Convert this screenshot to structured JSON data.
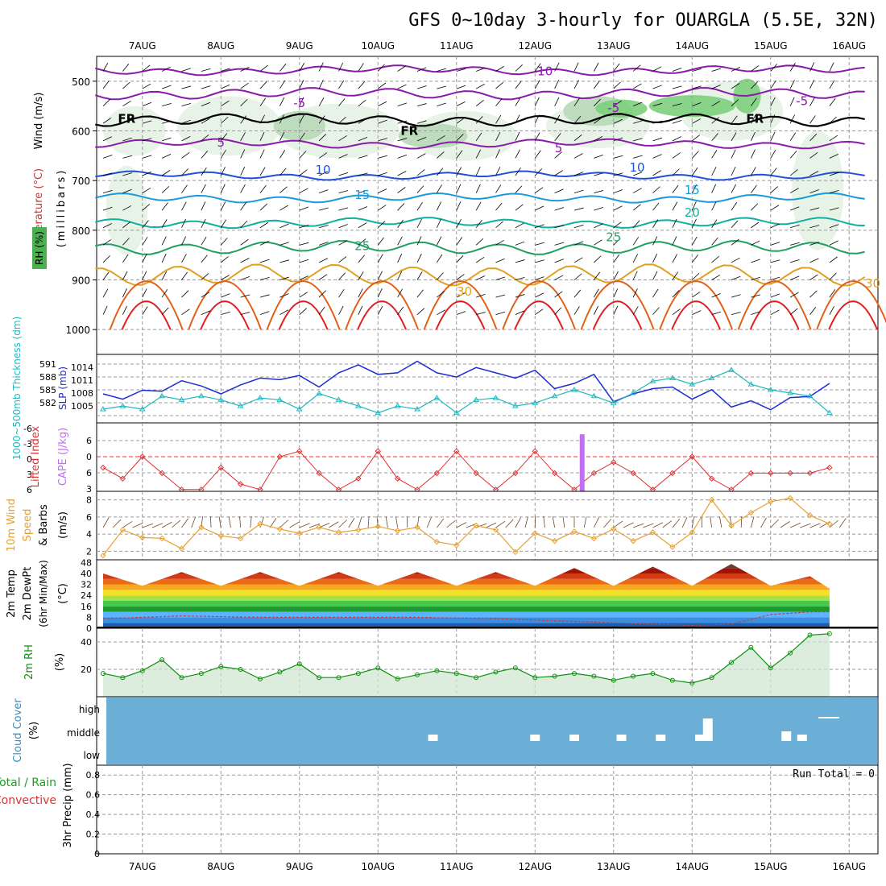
{
  "title": "GFS 0~10day 3-hourly for OUARGLA (5.5E, 32N)",
  "days": [
    "7AUG",
    "8AUG",
    "9AUG",
    "10AUG",
    "11AUG",
    "12AUG",
    "13AUG",
    "14AUG",
    "15AUG",
    "16AUG"
  ],
  "colors": {
    "temp_purple": "#8a1aa8",
    "temp_blue": "#2050d8",
    "temp_cyan": "#1a9ad8",
    "temp_teal": "#10b0a0",
    "temp_green": "#20a060",
    "temp_orange": "#e0a020",
    "temp_darkorange": "#e06018",
    "temp_red": "#e02020",
    "rh_fill": "#e6f2e6",
    "rh_mid": "#b8d8b8",
    "rh_dark": "#7ccf7c",
    "slp": "#1a2fd0",
    "thickness": "#20b8c0",
    "lifted": "#e03030",
    "cape": "#c070f0",
    "wind": "#e8a030",
    "rh2m": "#109010",
    "cloud": "#6baed6",
    "precip_text": "#000000"
  },
  "panels": {
    "upper_air": {
      "ylabel_wind": "Wind (m/s)",
      "ylabel_temp": "Temperature (°C)",
      "ylabel_rh": "RH (%)",
      "ylabel_mb": "(millibars)",
      "pressure_ticks": [
        500,
        600,
        700,
        800,
        900,
        1000
      ],
      "contour_labels": [
        {
          "text": "-10",
          "day": 5.6,
          "p": 488,
          "color": "#8a1aa8"
        },
        {
          "text": "-5",
          "day": 2.5,
          "p": 552,
          "color": "#8a1aa8"
        },
        {
          "text": "-5",
          "day": 6.5,
          "p": 562,
          "color": "#8a1aa8"
        },
        {
          "text": "-5",
          "day": 8.9,
          "p": 548,
          "color": "#8a1aa8"
        },
        {
          "text": "FR",
          "day": 0.3,
          "p": 584,
          "color": "#000000"
        },
        {
          "text": "FR",
          "day": 3.9,
          "p": 608,
          "color": "#000000"
        },
        {
          "text": "FR",
          "day": 8.3,
          "p": 584,
          "color": "#000000"
        },
        {
          "text": "5",
          "day": 1.5,
          "p": 632,
          "color": "#8a1aa8"
        },
        {
          "text": "5",
          "day": 5.8,
          "p": 643,
          "color": "#8a1aa8"
        },
        {
          "text": "10",
          "day": 2.8,
          "p": 687,
          "color": "#2050d8"
        },
        {
          "text": "10",
          "day": 6.8,
          "p": 682,
          "color": "#2050d8"
        },
        {
          "text": "15",
          "day": 3.3,
          "p": 737,
          "color": "#1a9ad8"
        },
        {
          "text": "15",
          "day": 7.5,
          "p": 727,
          "color": "#1a9ad8"
        },
        {
          "text": "20",
          "day": 7.5,
          "p": 773,
          "color": "#10b0a0"
        },
        {
          "text": "25",
          "day": 3.3,
          "p": 840,
          "color": "#20a060"
        },
        {
          "text": "25",
          "day": 6.5,
          "p": 822,
          "color": "#20a060"
        },
        {
          "text": "30",
          "day": 4.6,
          "p": 932,
          "color": "#e0a020"
        },
        {
          "text": "30",
          "day": 9.8,
          "p": 915,
          "color": "#e0a020"
        }
      ]
    },
    "slp": {
      "ylabel_thick": "1000~500mb Thickness (dm)",
      "ylabel_slp": "SLP (mb)",
      "thick_ticks": [
        "591",
        "588",
        "585",
        "582"
      ],
      "slp_ticks": [
        "1014",
        "1011",
        "1008",
        "1005"
      ]
    },
    "cape": {
      "ylabel_li": "Lifted Index",
      "ylabel_cape": "CAPE (J/kg)",
      "li_ticks": [
        "-6",
        "-3",
        "0",
        "3",
        "6"
      ],
      "cape_ticks": [
        "6",
        "0",
        "6",
        "3"
      ]
    },
    "wind10m": {
      "ylabel_1": "10m Wind",
      "ylabel_2": "Speed",
      "ylabel_3": "& Barbs",
      "ylabel_unit": "(m/s)",
      "ticks": [
        "8",
        "6",
        "4",
        "2"
      ]
    },
    "temp2m": {
      "ylabel_1": "2m Temp",
      "ylabel_2": "2m DewPt",
      "ylabel_3": "(6hr Min/Max)",
      "ylabel_unit": "(°C)",
      "ticks": [
        "48",
        "40",
        "32",
        "24",
        "16",
        "8",
        "0"
      ]
    },
    "rh2m": {
      "ylabel": "2m RH",
      "ylabel_unit": "(%)",
      "ticks": [
        "40",
        "20"
      ]
    },
    "cloud": {
      "ylabel": "Cloud Cover",
      "ylabel_unit": "(%)",
      "levels": [
        "high",
        "middle",
        "low"
      ]
    },
    "precip": {
      "ylabel_1": "Total / Rain",
      "ylabel_2": "Convective",
      "ylabel_3": "3hr Precip (mm)",
      "ticks": [
        "0.8",
        "0.6",
        "0.4",
        "0.2",
        "0"
      ],
      "run_total": "Run Total = 0"
    }
  },
  "chart_data": [
    {
      "type": "line",
      "title": "1000~500mb Thickness (dm) / SLP (mb)",
      "x_unit": "days from 7AUG 00Z",
      "series": [
        {
          "name": "SLP (mb)",
          "x": [
            0.0,
            0.25,
            0.5,
            0.75,
            1.0,
            1.25,
            1.5,
            1.75,
            2.0,
            2.25,
            2.5,
            2.75,
            3.0,
            3.25,
            3.5,
            3.75,
            4.0,
            4.25,
            4.5,
            4.75,
            5.0,
            5.25,
            5.5,
            5.75,
            6.0,
            6.25,
            6.5,
            6.75,
            7.0,
            7.25,
            7.5,
            7.75,
            8.0,
            8.25,
            8.5,
            8.75,
            9.0,
            9.25
          ],
          "values": [
            1008.5,
            1007.5,
            1009.2,
            1009.0,
            1011.0,
            1010.0,
            1008.5,
            1010.2,
            1011.5,
            1011.2,
            1012.0,
            1009.8,
            1012.5,
            1014.0,
            1012.2,
            1012.5,
            1014.7,
            1012.5,
            1011.7,
            1013.5,
            1012.5,
            1011.5,
            1013.0,
            1009.5,
            1010.5,
            1012.2,
            1007.0,
            1008.5,
            1009.5,
            1009.8,
            1007.5,
            1009.3,
            1006.0,
            1007.2,
            1005.5,
            1007.8,
            1008.0,
            1010.5
          ]
        },
        {
          "name": "1000~500mb Thickness (dm)",
          "x": [
            0.0,
            0.25,
            0.5,
            0.75,
            1.0,
            1.25,
            1.5,
            1.75,
            2.0,
            2.25,
            2.5,
            2.75,
            3.0,
            3.25,
            3.5,
            3.75,
            4.0,
            4.25,
            4.5,
            4.75,
            5.0,
            5.25,
            5.5,
            5.75,
            6.0,
            6.25,
            6.5,
            6.75,
            7.0,
            7.25,
            7.5,
            7.75,
            8.0,
            8.25,
            8.5,
            8.75,
            9.0,
            9.25
          ],
          "values": [
            583.2,
            583.7,
            583.2,
            585.3,
            584.7,
            585.3,
            584.7,
            583.7,
            585.0,
            584.7,
            583.2,
            585.7,
            584.7,
            583.7,
            582.6,
            583.7,
            583.2,
            585.0,
            582.6,
            584.7,
            585.0,
            583.7,
            584.2,
            585.3,
            586.3,
            585.3,
            584.2,
            585.8,
            587.7,
            588.2,
            587.2,
            588.2,
            589.5,
            587.2,
            586.3,
            585.8,
            585.3,
            582.6
          ]
        }
      ],
      "slp_range": [
        1003,
        1016
      ],
      "thick_range": [
        581,
        592
      ]
    },
    {
      "type": "line",
      "title": "Lifted Index / CAPE (J/kg)",
      "x_unit": "days from 7AUG 00Z",
      "series": [
        {
          "name": "Lifted Index",
          "x": [
            0.0,
            0.25,
            0.5,
            0.75,
            1.0,
            1.25,
            1.5,
            1.75,
            2.0,
            2.25,
            2.5,
            2.75,
            3.0,
            3.25,
            3.5,
            3.75,
            4.0,
            4.25,
            4.5,
            4.75,
            5.0,
            5.25,
            5.5,
            5.75,
            6.0,
            6.25,
            6.5,
            6.75,
            7.0,
            7.25,
            7.5,
            7.75,
            8.0,
            8.25,
            8.5,
            8.75,
            9.0,
            9.25
          ],
          "values": [
            2,
            4,
            0,
            3,
            6,
            6,
            2,
            5,
            6,
            0,
            -1,
            3,
            6,
            4,
            -1,
            4,
            6,
            3,
            -1,
            3,
            6,
            3,
            -1,
            3,
            6,
            3,
            1,
            3,
            6,
            3,
            0,
            4,
            6,
            3,
            3,
            3,
            3,
            2
          ]
        },
        {
          "name": "CAPE (J/kg)",
          "x": [
            6.1
          ],
          "values": [
            10
          ]
        }
      ],
      "li_range": [
        -6,
        6
      ]
    },
    {
      "type": "line",
      "title": "10m Wind Speed (m/s)",
      "x_unit": "days from 7AUG 00Z",
      "series": [
        {
          "name": "10m Wind Speed (m/s)",
          "x": [
            0.0,
            0.25,
            0.5,
            0.75,
            1.0,
            1.25,
            1.5,
            1.75,
            2.0,
            2.25,
            2.5,
            2.75,
            3.0,
            3.25,
            3.5,
            3.75,
            4.0,
            4.25,
            4.5,
            4.75,
            5.0,
            5.25,
            5.5,
            5.75,
            6.0,
            6.25,
            6.5,
            6.75,
            7.0,
            7.25,
            7.5,
            7.75,
            8.0,
            8.25,
            8.5,
            8.75,
            9.0,
            9.25
          ],
          "values": [
            1.5,
            4.5,
            3.6,
            3.5,
            2.3,
            4.8,
            3.8,
            3.5,
            5.2,
            4.6,
            4.1,
            4.8,
            4.2,
            4.5,
            4.9,
            4.4,
            4.8,
            3.1,
            2.7,
            5.0,
            4.5,
            1.9,
            4.1,
            3.2,
            4.3,
            3.5,
            4.6,
            3.2,
            4.2,
            2.5,
            4.2,
            8.0,
            5.0,
            6.5,
            7.8,
            8.2,
            6.2,
            5.2
          ]
        }
      ],
      "ylim": [
        1,
        9
      ]
    },
    {
      "type": "area",
      "title": "2m Temp / 2m DewPt (°C)",
      "x_unit": "days from 7AUG 00Z",
      "series": [
        {
          "name": "2m Temp (°C)",
          "x": [
            0.0,
            0.5,
            1.0,
            1.5,
            2.0,
            2.5,
            3.0,
            3.5,
            4.0,
            4.5,
            5.0,
            5.5,
            6.0,
            6.5,
            7.0,
            7.5,
            8.0,
            8.5,
            9.0,
            9.25
          ],
          "values": [
            40,
            31,
            41,
            31,
            41,
            31,
            41,
            31,
            41,
            31,
            41,
            31,
            44,
            31,
            45,
            31,
            47,
            31,
            38,
            29
          ]
        },
        {
          "name": "2m DewPt (°C)",
          "x": [
            0.0,
            1.0,
            2.0,
            3.0,
            4.0,
            5.0,
            6.0,
            7.0,
            7.5,
            8.0,
            8.5,
            9.0,
            9.25
          ],
          "values": [
            7,
            9,
            8,
            8,
            8,
            7,
            5,
            3,
            2,
            3,
            10,
            12,
            12
          ]
        }
      ],
      "ylim": [
        0,
        50
      ]
    },
    {
      "type": "area",
      "title": "2m RH (%)",
      "x_unit": "days from 7AUG 00Z",
      "series": [
        {
          "name": "2m RH (%)",
          "x": [
            0.0,
            0.25,
            0.5,
            0.75,
            1.0,
            1.25,
            1.5,
            1.75,
            2.0,
            2.25,
            2.5,
            2.75,
            3.0,
            3.25,
            3.5,
            3.75,
            4.0,
            4.25,
            4.5,
            4.75,
            5.0,
            5.25,
            5.5,
            5.75,
            6.0,
            6.25,
            6.5,
            6.75,
            7.0,
            7.25,
            7.5,
            7.75,
            8.0,
            8.25,
            8.5,
            8.75,
            9.0,
            9.25
          ],
          "values": [
            17,
            14,
            19,
            27,
            14,
            17,
            22,
            20,
            13,
            18,
            24,
            14,
            14,
            17,
            21,
            13,
            16,
            19,
            17,
            14,
            18,
            21,
            14,
            15,
            17,
            15,
            12,
            15,
            17,
            12,
            10,
            14,
            25,
            36,
            21,
            32,
            45,
            46
          ]
        }
      ],
      "ylim": [
        0,
        50
      ]
    },
    {
      "type": "bar",
      "title": "Cloud Cover (%)",
      "categories": [
        "high",
        "middle",
        "low"
      ],
      "series": [
        {
          "name": "Cloud Cover (%)",
          "x": [
            4.2,
            5.5,
            6.0,
            6.6,
            7.1,
            7.6,
            7.7,
            8.7,
            8.9
          ],
          "values": [
            10,
            10,
            10,
            10,
            10,
            10,
            35,
            15,
            10
          ]
        }
      ]
    },
    {
      "type": "bar",
      "title": "3hr Precip (mm)",
      "series": [
        {
          "name": "3hr Precip (mm)",
          "values": [
            0
          ]
        }
      ],
      "ylim": [
        0,
        0.9
      ]
    }
  ]
}
